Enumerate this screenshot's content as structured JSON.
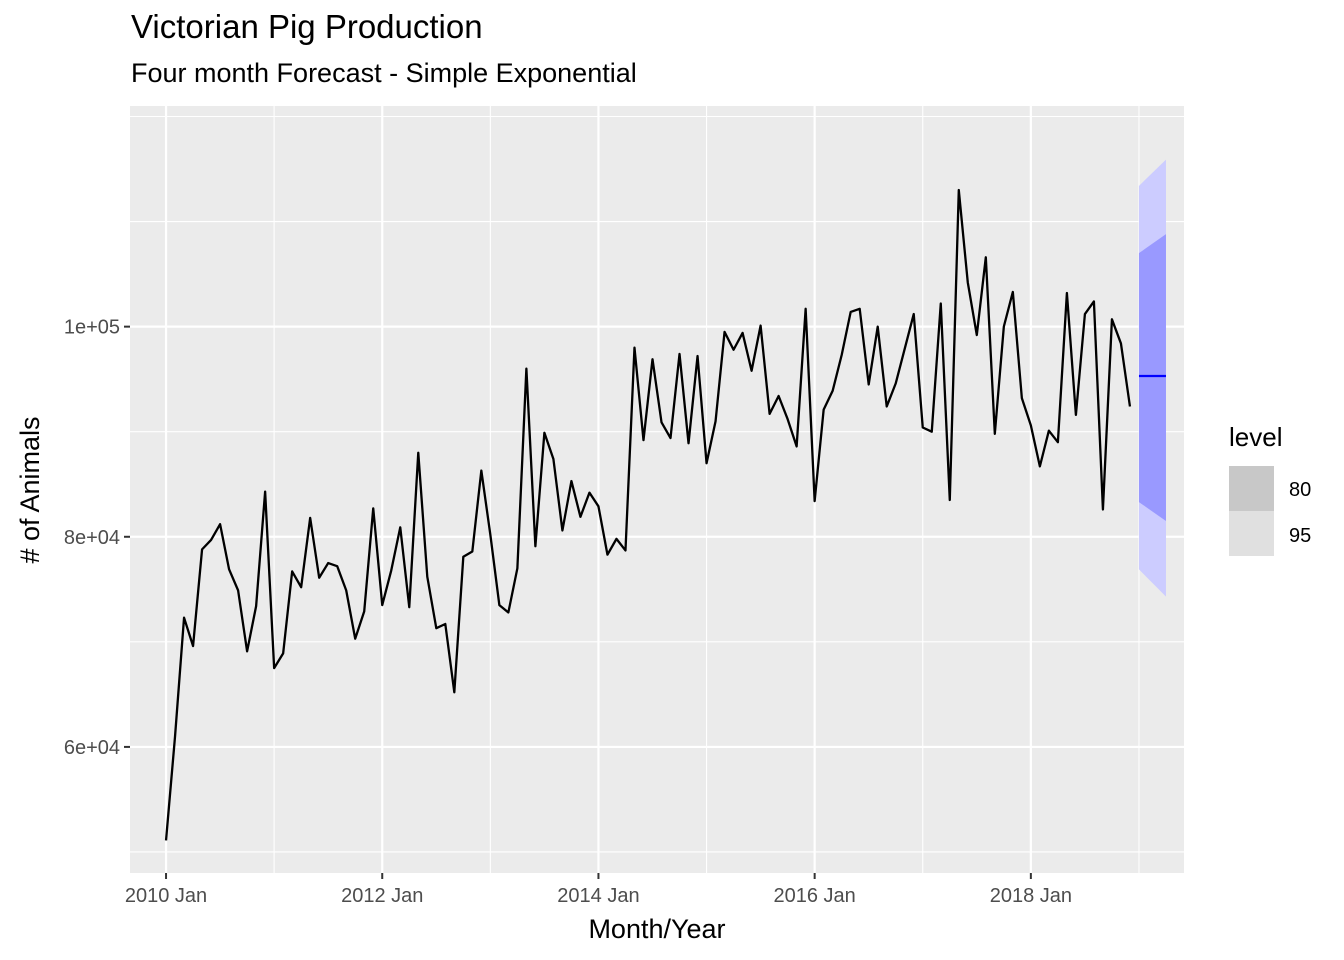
{
  "chart_data": {
    "type": "line",
    "title": "Victorian Pig Production",
    "subtitle": "Four month Forecast - Simple Exponential",
    "xlabel": "Month/Year",
    "ylabel": "# of Animals",
    "x_ticks": [
      "2010 Jan",
      "2012 Jan",
      "2014 Jan",
      "2016 Jan",
      "2018 Jan"
    ],
    "y_ticks": [
      "6e+04",
      "8e+04",
      "1e+05"
    ],
    "y_tick_values": [
      60000,
      80000,
      100000
    ],
    "ylim": [
      48000,
      121000
    ],
    "xlim": [
      "2009-09",
      "2019-06"
    ],
    "grid": true,
    "series": [
      {
        "start": "2010-01",
        "color": "#000000",
        "values": [
          51100,
          61000,
          72300,
          69600,
          78800,
          79700,
          81200,
          76900,
          74900,
          69100,
          73400,
          84300,
          67500,
          68900,
          76700,
          75200,
          81800,
          76100,
          77500,
          77200,
          74900,
          70300,
          72900,
          82700,
          73500,
          76800,
          80900,
          73300,
          88000,
          76200,
          71300,
          71700,
          65200,
          78100,
          78600,
          86300,
          80200,
          73500,
          72800,
          77000,
          96000,
          79100,
          89900,
          87400,
          80600,
          85300,
          81900,
          84200,
          82900,
          78300,
          79800,
          78700,
          98000,
          89200,
          96900,
          90900,
          89400,
          97400,
          88900,
          97200,
          87000,
          91000,
          99500,
          97800,
          99400,
          95800,
          100100,
          91700,
          93400,
          91200,
          88600,
          101700,
          83400,
          92100,
          93900,
          97300,
          101400,
          101700,
          94500,
          100000,
          92400,
          94600,
          97900,
          101200,
          90400,
          90000,
          102200,
          83500,
          113000,
          104200,
          99200,
          106600,
          89800,
          100000,
          103300,
          93200,
          90600,
          86700,
          90100,
          89000,
          103200,
          91600,
          101200,
          102400,
          82600,
          100700,
          98400,
          92400
        ]
      }
    ],
    "forecast": {
      "start": "2019-01",
      "months": 4,
      "mean": 95300,
      "mean_color": "#0000ff",
      "band_80": {
        "lower_start": 83300,
        "lower_end": 81500,
        "upper_start": 107000,
        "upper_end": 108800
      },
      "band_95": {
        "lower_start": 76900,
        "lower_end": 74300,
        "upper_start": 113400,
        "upper_end": 115900
      }
    },
    "legend": {
      "title": "level",
      "position": "right",
      "items": [
        {
          "label": "80",
          "color": "#c8c8c8"
        },
        {
          "label": "95",
          "color": "#e0e0e0"
        }
      ]
    },
    "colors": {
      "panel_background": "#ebebeb",
      "grid_major": "#ffffff",
      "band_80": "#9999ff",
      "band_95": "#ccccff"
    }
  }
}
